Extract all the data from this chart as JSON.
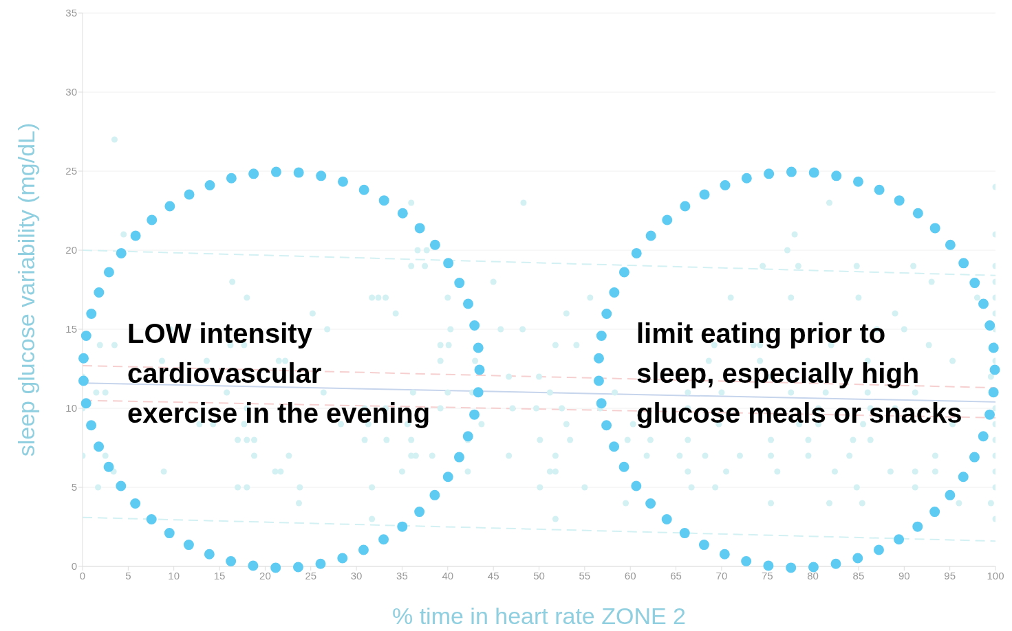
{
  "chart_data": {
    "type": "scatter",
    "xlabel": "% time in heart rate ZONE 2",
    "ylabel": "sleep glucose variability (mg/dL)",
    "xlim": [
      0,
      100
    ],
    "xticks": [
      0,
      5,
      10,
      15,
      20,
      25,
      30,
      35,
      40,
      45,
      50,
      55,
      60,
      65,
      70,
      75,
      80,
      85,
      90,
      95,
      100
    ],
    "ylim": [
      0,
      35
    ],
    "yticks": [
      0,
      5,
      10,
      15,
      20,
      25,
      30,
      35
    ],
    "grid": "y",
    "legend": false,
    "annotations": [
      "LOW intensity\ncardiovascular\nexercise in the evening",
      "limit eating prior to\nsleep, especially high\nglucose meals or snacks"
    ],
    "series": [
      {
        "marker": "circle",
        "color": "#d3f0f3",
        "x": [
          3.5,
          36,
          48.3,
          81.8,
          100,
          4.5,
          78,
          100,
          36.7,
          37.7,
          77.2,
          36,
          37.5,
          74.5,
          78.4,
          84.8,
          91,
          100,
          16.4,
          45,
          93,
          100,
          18,
          31.7,
          32.4,
          33.2,
          40,
          55.6,
          71,
          77.6,
          85,
          98,
          100,
          25.2,
          34.3,
          53,
          89,
          100,
          9.6,
          26.8,
          40.3,
          45.8,
          48.2,
          87,
          90,
          100,
          1.9,
          3.5,
          16.2,
          17.7,
          39.2,
          40.1,
          51.8,
          54.1,
          69.2,
          73.5,
          74.2,
          82,
          92.7,
          100,
          8.7,
          13.6,
          21.5,
          22.2,
          39.2,
          43,
          68.6,
          74.2,
          86,
          95.3,
          100,
          0,
          46.7,
          50,
          75.4,
          99.5,
          1.5,
          2.5,
          15.8,
          26.4,
          36.2,
          40,
          42.7,
          51.2,
          58.3,
          66.3,
          70,
          77.6,
          81.4,
          86,
          91.2,
          0,
          18,
          30.9,
          33.2,
          39.2,
          47.1,
          49.7,
          52.5,
          56.7,
          66.3,
          80.6,
          86.3,
          89,
          100,
          12.8,
          14.3,
          17.7,
          28.3,
          31.3,
          35.6,
          43.7,
          53,
          60.3,
          69.7,
          78.5,
          80.6,
          85.5,
          95.3,
          100,
          17,
          18,
          18.8,
          30.9,
          33.3,
          36,
          42.2,
          50.1,
          53.4,
          59.7,
          62.2,
          66.3,
          75.4,
          79.5,
          84.4,
          86.3,
          100,
          0,
          2.5,
          18.8,
          22.6,
          36,
          36.5,
          38.3,
          46.7,
          51.8,
          61.8,
          65.4,
          68.2,
          72,
          75.4,
          79.5,
          84,
          93.4,
          100,
          3.4,
          8.9,
          21.1,
          21.7,
          35,
          42.2,
          51.2,
          51.8,
          66.3,
          70.5,
          76.1,
          82.4,
          88.5,
          91.2,
          93.4,
          100,
          1.7,
          17,
          18,
          23.8,
          31.7,
          50.1,
          55,
          66.7,
          69.3,
          84.8,
          91.2,
          100,
          23.7,
          59.5,
          75.4,
          81.8,
          85.4,
          96,
          99.5,
          31.7,
          51.8,
          100
        ],
        "values": [
          27,
          23,
          23,
          23,
          24,
          21,
          21,
          21,
          20,
          20,
          20,
          19,
          19,
          19,
          19,
          19,
          19,
          19,
          18,
          18,
          18,
          18,
          17,
          17,
          17,
          17,
          17,
          17,
          17,
          17,
          17,
          17,
          17,
          16,
          16,
          16,
          16,
          16,
          15,
          15,
          15,
          15,
          15,
          15,
          15,
          15,
          14,
          14,
          14,
          14,
          14,
          14,
          14,
          14,
          14,
          14,
          14,
          14,
          14,
          14,
          13,
          13,
          13,
          13,
          13,
          13,
          13,
          13,
          13,
          13,
          13,
          12,
          12,
          12,
          12,
          12,
          11,
          11,
          11,
          11,
          11,
          11,
          11,
          11,
          11,
          11,
          11,
          11,
          11,
          11,
          11,
          10,
          10,
          10,
          10,
          10,
          10,
          10,
          10,
          10,
          10,
          10,
          10,
          10,
          10,
          9,
          9,
          9,
          9,
          9,
          9,
          9,
          9,
          9,
          9,
          9,
          9,
          9,
          9,
          9,
          8,
          8,
          8,
          8,
          8,
          8,
          8,
          8,
          8,
          8,
          8,
          8,
          8,
          8,
          8,
          8,
          8,
          7,
          7,
          7,
          7,
          7,
          7,
          7,
          7,
          7,
          7,
          7,
          7,
          7,
          7,
          7,
          7,
          7,
          7,
          6,
          6,
          6,
          6,
          6,
          6,
          6,
          6,
          6,
          6,
          6,
          6,
          6,
          6,
          6,
          6,
          5,
          5,
          5,
          5,
          5,
          5,
          5,
          5,
          5,
          5,
          5,
          5,
          4,
          4,
          4,
          4,
          4,
          4,
          4,
          3,
          3,
          3
        ]
      },
      {
        "type": "line",
        "marker": "none",
        "line_style": "solid",
        "color": "#c6d4ec",
        "x": [
          0,
          100
        ],
        "values": [
          11.6,
          10.4
        ]
      },
      {
        "type": "line",
        "marker": "none",
        "line_style": "dashed",
        "color": "#f6d0d0",
        "x": [
          0,
          100
        ],
        "values": [
          12.7,
          11.3
        ]
      },
      {
        "type": "line",
        "marker": "none",
        "line_style": "dashed",
        "color": "#f6d0d0",
        "x": [
          0,
          100
        ],
        "values": [
          10.5,
          9.4
        ]
      },
      {
        "type": "line",
        "marker": "none",
        "line_style": "dashed",
        "color": "#d3f0f3",
        "x": [
          0,
          100
        ],
        "values": [
          20,
          18.4
        ]
      },
      {
        "type": "line",
        "marker": "none",
        "line_style": "dashed",
        "color": "#d3f0f3",
        "x": [
          0,
          100
        ],
        "values": [
          3.1,
          1.6
        ]
      }
    ]
  }
}
